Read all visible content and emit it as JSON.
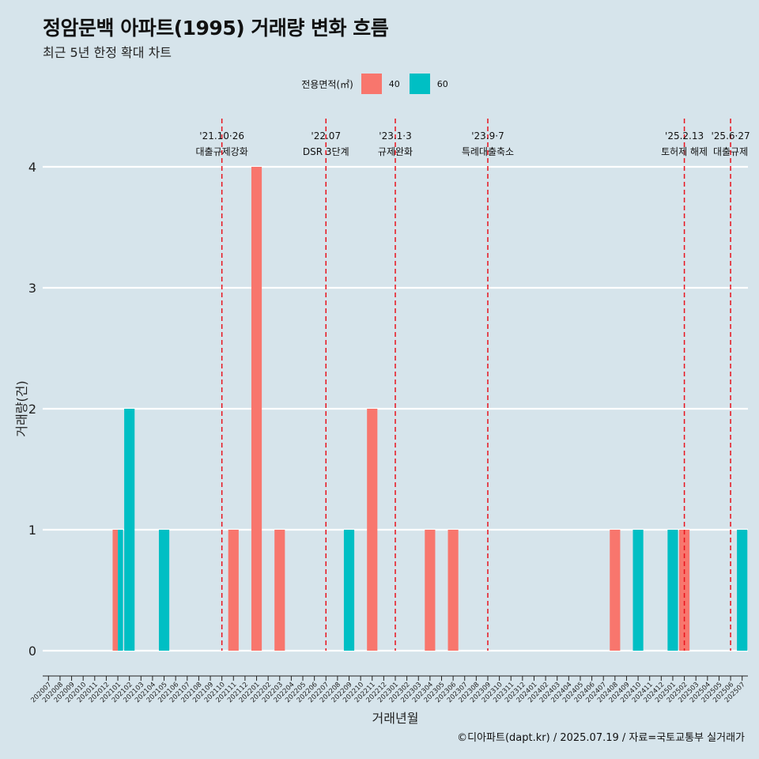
{
  "header": {
    "title": "정암문백 아파트(1995) 거래량 변화 흐름",
    "subtitle": "최근 5년 한정 확대 차트"
  },
  "legend": {
    "title": "전용면적(㎡)",
    "items": [
      {
        "label": "40",
        "color": "#f8766d"
      },
      {
        "label": "60",
        "color": "#00bfc4"
      }
    ]
  },
  "footer": {
    "credit": "©디아파트(dapt.kr) / 2025.07.19 / 자료=국토교통부 실거래가"
  },
  "chart_data": {
    "type": "bar",
    "xlabel": "거래년월",
    "ylabel": "거래량(건)",
    "ylim": [
      0,
      4
    ],
    "yticks": [
      0,
      1,
      2,
      3,
      4
    ],
    "grid": true,
    "legend_position": "top",
    "categories": [
      "202007",
      "202008",
      "202009",
      "202010",
      "202011",
      "202012",
      "202101",
      "202102",
      "202103",
      "202104",
      "202105",
      "202106",
      "202107",
      "202108",
      "202109",
      "202110",
      "202111",
      "202112",
      "202201",
      "202202",
      "202203",
      "202204",
      "202205",
      "202206",
      "202207",
      "202208",
      "202209",
      "202210",
      "202211",
      "202212",
      "202301",
      "202302",
      "202303",
      "202304",
      "202305",
      "202306",
      "202307",
      "202308",
      "202309",
      "202310",
      "202311",
      "202312",
      "202401",
      "202402",
      "202403",
      "202404",
      "202405",
      "202406",
      "202407",
      "202408",
      "202409",
      "202410",
      "202411",
      "202412",
      "202501",
      "202502",
      "202503",
      "202504",
      "202505",
      "202506",
      "202507"
    ],
    "series": [
      {
        "name": "40",
        "color": "#f8766d",
        "values": [
          0,
          0,
          0,
          0,
          0,
          0,
          1,
          0,
          0,
          0,
          0,
          0,
          0,
          0,
          0,
          0,
          1,
          0,
          4,
          0,
          1,
          0,
          0,
          0,
          0,
          0,
          0,
          0,
          2,
          0,
          0,
          0,
          0,
          1,
          0,
          1,
          0,
          0,
          0,
          0,
          0,
          0,
          0,
          0,
          0,
          0,
          0,
          0,
          0,
          1,
          0,
          0,
          0,
          0,
          0,
          1,
          0,
          0,
          0,
          0,
          0
        ]
      },
      {
        "name": "60",
        "color": "#00bfc4",
        "values": [
          0,
          0,
          0,
          0,
          0,
          0,
          1,
          2,
          0,
          0,
          1,
          0,
          0,
          0,
          0,
          0,
          0,
          0,
          0,
          0,
          0,
          0,
          0,
          0,
          0,
          0,
          1,
          0,
          0,
          0,
          0,
          0,
          0,
          0,
          0,
          0,
          0,
          0,
          0,
          0,
          0,
          0,
          0,
          0,
          0,
          0,
          0,
          0,
          0,
          0,
          0,
          1,
          0,
          0,
          1,
          0,
          0,
          0,
          0,
          0,
          1
        ]
      }
    ],
    "annotations": [
      {
        "date": "'21.10·26",
        "label": "대출규제강화",
        "x": "202110"
      },
      {
        "date": "'22.07",
        "label": "DSR 3단계",
        "x": "202207"
      },
      {
        "date": "'23.1·3",
        "label": "규제완화",
        "x": "202301"
      },
      {
        "date": "'23.9·7",
        "label": "특례대출축소",
        "x": "202309"
      },
      {
        "date": "'25.2.13",
        "label": "토허제 해제",
        "x": "202502"
      },
      {
        "date": "'25.6·27",
        "label": "대출규제",
        "x": "202506"
      }
    ]
  }
}
